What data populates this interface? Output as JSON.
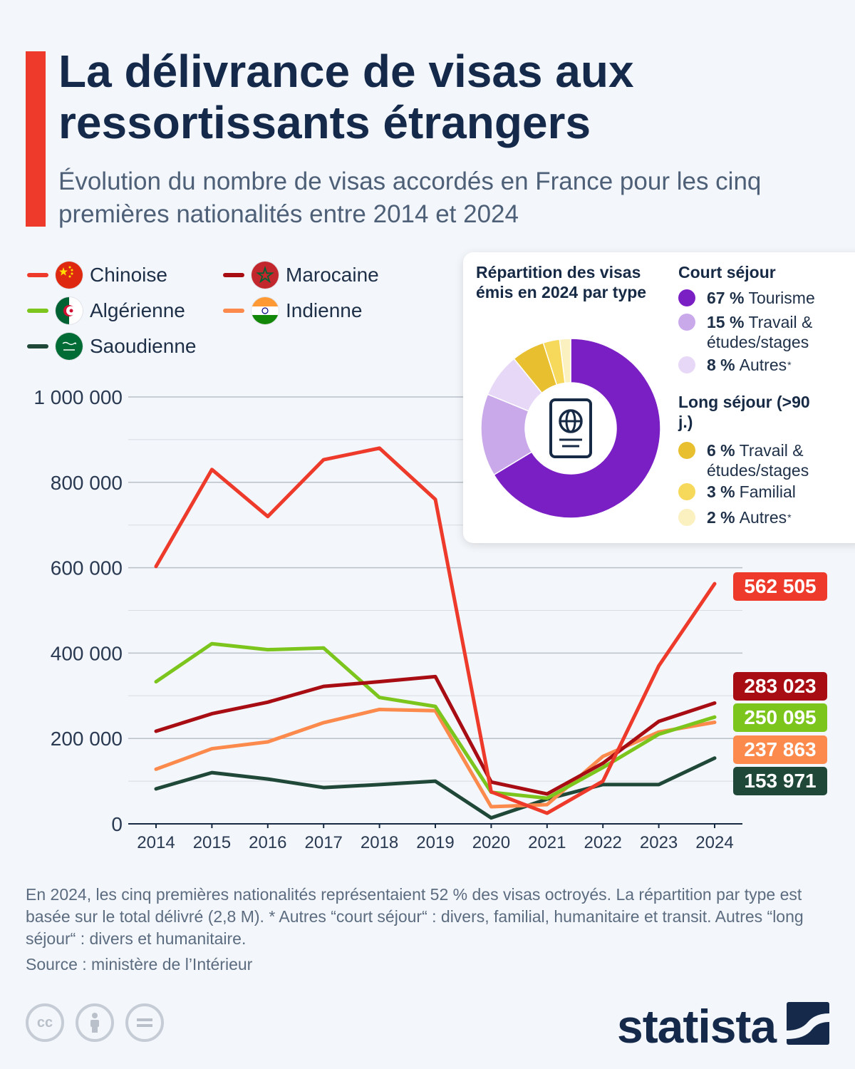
{
  "header": {
    "title": "La délivrance de visas aux ressortissants étrangers",
    "subtitle": "Évolution du nombre de visas accordés en France pour les cinq premières nationalités entre 2014 et 2024"
  },
  "legend": {
    "items": [
      {
        "label": "Chinoise",
        "color": "#ee3a2b",
        "flag": "china-flag-icon"
      },
      {
        "label": "Marocaine",
        "color": "#a80d14",
        "flag": "morocco-flag-icon"
      },
      {
        "label": "Algérienne",
        "color": "#7cc51c",
        "flag": "algeria-flag-icon"
      },
      {
        "label": "Indienne",
        "color": "#fb8a4c",
        "flag": "india-flag-icon"
      },
      {
        "label": "Saoudienne",
        "color": "#1f4838",
        "flag": "saudi-flag-icon"
      }
    ]
  },
  "chart_data": [
    {
      "type": "line",
      "x": [
        "2014",
        "2015",
        "2016",
        "2017",
        "2018",
        "2019",
        "2020",
        "2021",
        "2022",
        "2023",
        "2024"
      ],
      "y_ticks": [
        "0",
        "200 000",
        "400 000",
        "600 000",
        "800 000",
        "1 000 000"
      ],
      "ylim": [
        0,
        1000000
      ],
      "grid": true,
      "series": [
        {
          "name": "Chinoise",
          "color": "#ee3a2b",
          "values": [
            603000,
            830000,
            720000,
            853000,
            880000,
            760000,
            75000,
            25000,
            100000,
            370000,
            562505
          ],
          "end_label": "562 505"
        },
        {
          "name": "Marocaine",
          "color": "#a80d14",
          "values": [
            217000,
            258000,
            285000,
            322000,
            333000,
            345000,
            98000,
            70000,
            142000,
            240000,
            283023
          ],
          "end_label": "283 023"
        },
        {
          "name": "Algérienne",
          "color": "#7cc51c",
          "values": [
            333000,
            422000,
            408000,
            412000,
            296000,
            275000,
            74000,
            60000,
            132000,
            210000,
            250095
          ],
          "end_label": "250 095"
        },
        {
          "name": "Indienne",
          "color": "#fb8a4c",
          "values": [
            128000,
            176000,
            192000,
            237000,
            268000,
            265000,
            40000,
            45000,
            158000,
            215000,
            237863
          ],
          "end_label": "237 863"
        },
        {
          "name": "Saoudienne",
          "color": "#1f4838",
          "values": [
            82000,
            120000,
            105000,
            85000,
            92000,
            100000,
            14000,
            58000,
            92000,
            92000,
            153971
          ],
          "end_label": "153 971"
        }
      ]
    },
    {
      "type": "pie",
      "title": "Répartition des visas émis en 2024 par type",
      "groups": [
        {
          "title": "Court séjour",
          "slices": [
            {
              "pct": "67 %",
              "label": "Tourisme",
              "value": 67,
              "color": "#7a1fc4"
            },
            {
              "pct": "15 %",
              "label": "Travail & études/stages",
              "value": 15,
              "color": "#c9a9ea"
            },
            {
              "pct": "8 %",
              "label": "Autres",
              "value": 8,
              "color": "#e6d8f6",
              "note_mark": "*"
            }
          ]
        },
        {
          "title": "Long séjour (>90 j.)",
          "slices": [
            {
              "pct": "6 %",
              "label": "Travail & études/stages",
              "value": 6,
              "color": "#e8bf2e"
            },
            {
              "pct": "3 %",
              "label": "Familial",
              "value": 3,
              "color": "#f6d85a"
            },
            {
              "pct": "2 %",
              "label": "Autres",
              "value": 2,
              "color": "#fbf0bf",
              "note_mark": "*"
            }
          ]
        }
      ],
      "center_icon": "passport-icon"
    }
  ],
  "footer": {
    "note": "En 2024, les cinq premières nationalités représentaient 52 % des visas octroyés. La répartition par type est basée sur le total délivré (2,8 M).     * Autres “court séjour“ : divers, familial, humanitaire et transit. Autres “long séjour“ : divers et humanitaire.",
    "source": "Source : ministère de l’Intérieur",
    "brand": "statista",
    "license_icons": [
      "cc-icon",
      "attribution-icon",
      "no-derivatives-icon"
    ]
  }
}
